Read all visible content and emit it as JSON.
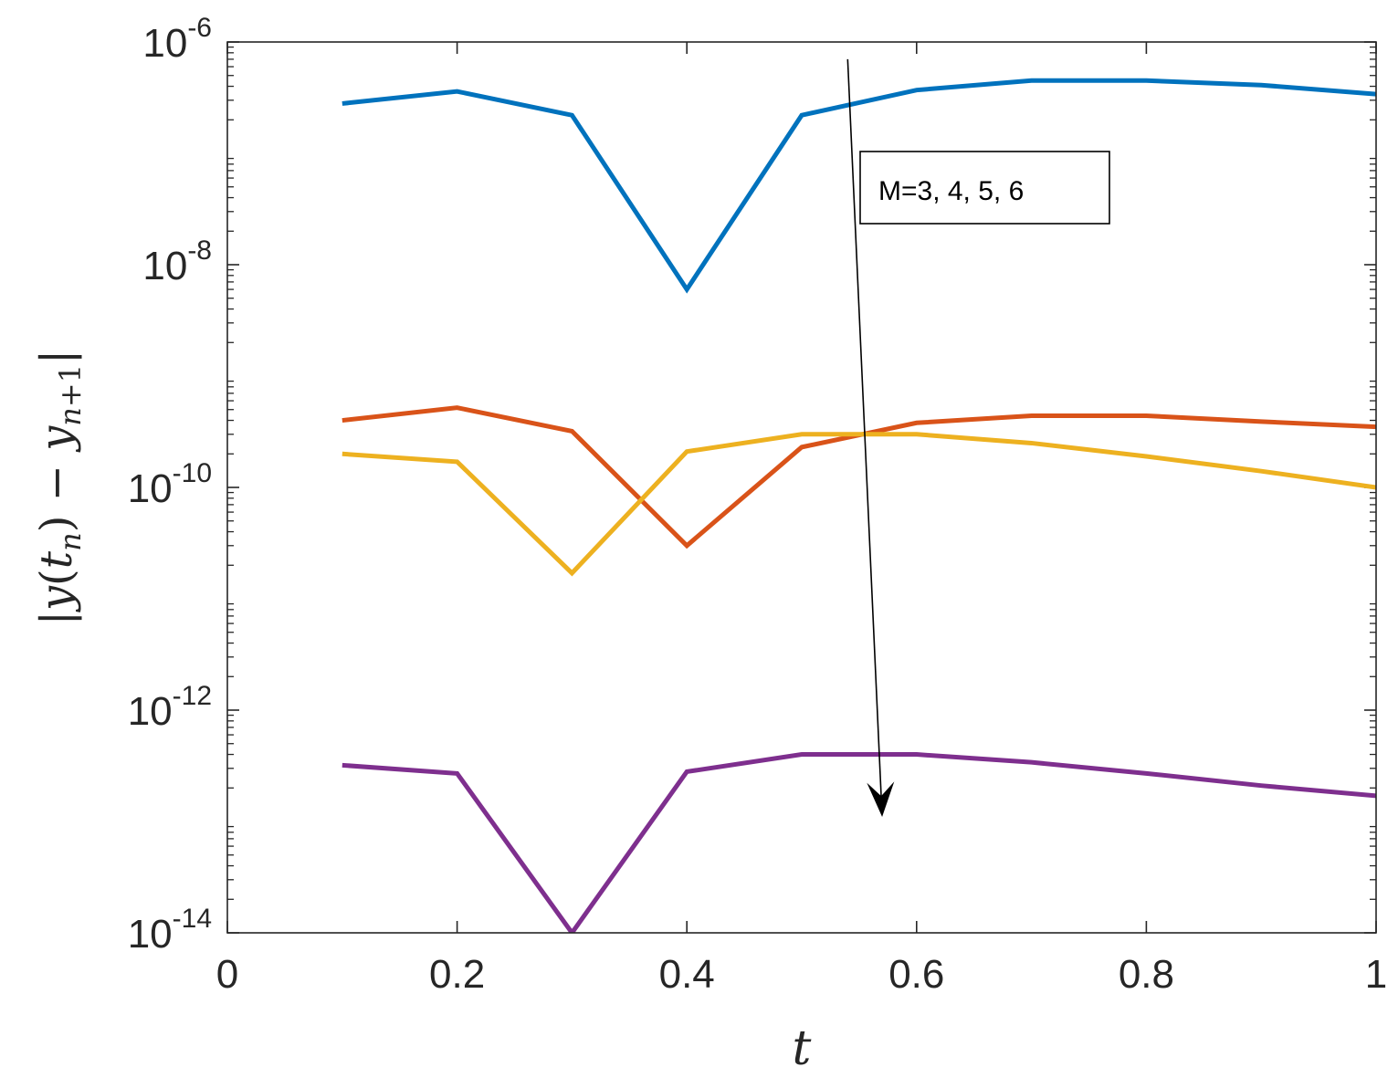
{
  "chart_data": {
    "type": "line",
    "title": "",
    "xlabel": "t",
    "ylabel": "|y(t_n) − y_{n+1}|",
    "yscale": "log",
    "xlim": [
      0,
      1
    ],
    "ylim": [
      1e-14,
      1e-06
    ],
    "xticks": [
      {
        "value": 0,
        "label": "0"
      },
      {
        "value": 0.2,
        "label": "0.2"
      },
      {
        "value": 0.4,
        "label": "0.4"
      },
      {
        "value": 0.6,
        "label": "0.6"
      },
      {
        "value": 0.8,
        "label": "0.8"
      },
      {
        "value": 1,
        "label": "1"
      }
    ],
    "yticks": [
      {
        "value": 1e-14,
        "base": "10",
        "exp": "-14"
      },
      {
        "value": 1e-12,
        "base": "10",
        "exp": "-12"
      },
      {
        "value": 1e-10,
        "base": "10",
        "exp": "-10"
      },
      {
        "value": 1e-08,
        "base": "10",
        "exp": "-8"
      },
      {
        "value": 1e-06,
        "base": "10",
        "exp": "-6"
      }
    ],
    "grid": false,
    "x": [
      0.1,
      0.2,
      0.3,
      0.4,
      0.5,
      0.6,
      0.7,
      0.8,
      0.9,
      1.0
    ],
    "series": [
      {
        "name": "M=3",
        "color": "#0072BD",
        "values": [
          2.8e-07,
          3.6e-07,
          2.2e-07,
          6e-09,
          2.2e-07,
          3.7e-07,
          4.5e-07,
          4.5e-07,
          4.1e-07,
          3.4e-07
        ]
      },
      {
        "name": "M=4",
        "color": "#D95319",
        "values": [
          4e-10,
          5.2e-10,
          3.2e-10,
          3e-11,
          2.3e-10,
          3.8e-10,
          4.4e-10,
          4.4e-10,
          3.9e-10,
          3.5e-10
        ]
      },
      {
        "name": "M=5",
        "color": "#EDB120",
        "values": [
          2e-10,
          1.7e-10,
          1.7e-11,
          2.1e-10,
          3e-10,
          3e-10,
          2.5e-10,
          1.9e-10,
          1.4e-10,
          1e-10
        ]
      },
      {
        "name": "M=6",
        "color": "#7E2F8E",
        "values": [
          3.2e-13,
          2.7e-13,
          1e-14,
          2.8e-13,
          4e-13,
          4e-13,
          3.4e-13,
          2.7e-13,
          2.1e-13,
          1.7e-13
        ]
      }
    ],
    "annotation": {
      "text": "M=3, 4, 5, 6",
      "arrow_from": [
        0.54,
        7e-07
      ],
      "arrow_to": [
        0.57,
        1.1e-13
      ]
    }
  }
}
